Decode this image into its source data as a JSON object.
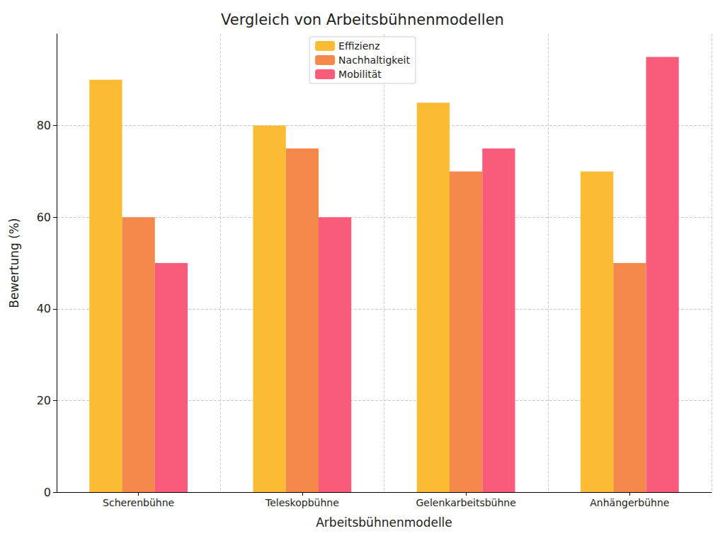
{
  "chart_data": {
    "type": "bar",
    "title": "Vergleich von Arbeitsbühnenmodellen",
    "x_label": "Arbeitsbühnenmodelle",
    "y_label": "Bewertung (%)",
    "categories": [
      "Scherenbühne",
      "Teleskopbühne",
      "Gelenkarbeitsbühne",
      "Anhängerbühne"
    ],
    "series": [
      {
        "name": "Effizienz",
        "color": "#fbbc33",
        "values": [
          90,
          80,
          85,
          70
        ]
      },
      {
        "name": "Nachhaltigkeit",
        "color": "#f4894b",
        "values": [
          60,
          75,
          70,
          50
        ]
      },
      {
        "name": "Mobilität",
        "color": "#f95c7a",
        "values": [
          50,
          60,
          75,
          95
        ]
      }
    ],
    "ylim": [
      0,
      100
    ],
    "yticks": [
      0,
      20,
      40,
      60,
      80
    ],
    "grid": true,
    "legend": "upper center"
  }
}
